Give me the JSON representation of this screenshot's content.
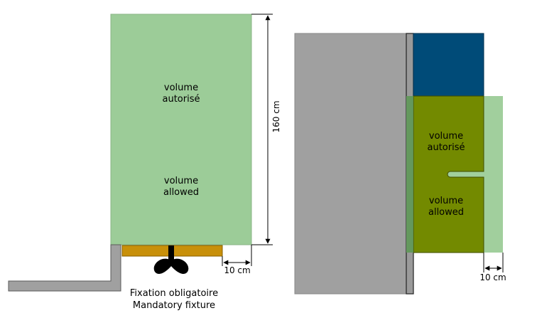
{
  "left_diagram": {
    "volume_label_fr": "volume\nautorisé",
    "volume_label_en": "volume\nallowed",
    "height_dimension": "160 cm",
    "width_dimension": "10 cm",
    "fixture_caption_fr": "Fixation obligatoire",
    "fixture_caption_en": "Mandatory fixture"
  },
  "right_diagram": {
    "volume_label_fr": "volume\nautorisé",
    "volume_label_en": "volume\nallowed",
    "width_dimension": "10 cm"
  },
  "colors": {
    "allowed_volume": "#9ccc98",
    "wall": "#a0a0a0",
    "shelf": "#c8900a",
    "blue_block": "#004b78",
    "olive_block": "#738a00",
    "fixture": "#000000"
  }
}
